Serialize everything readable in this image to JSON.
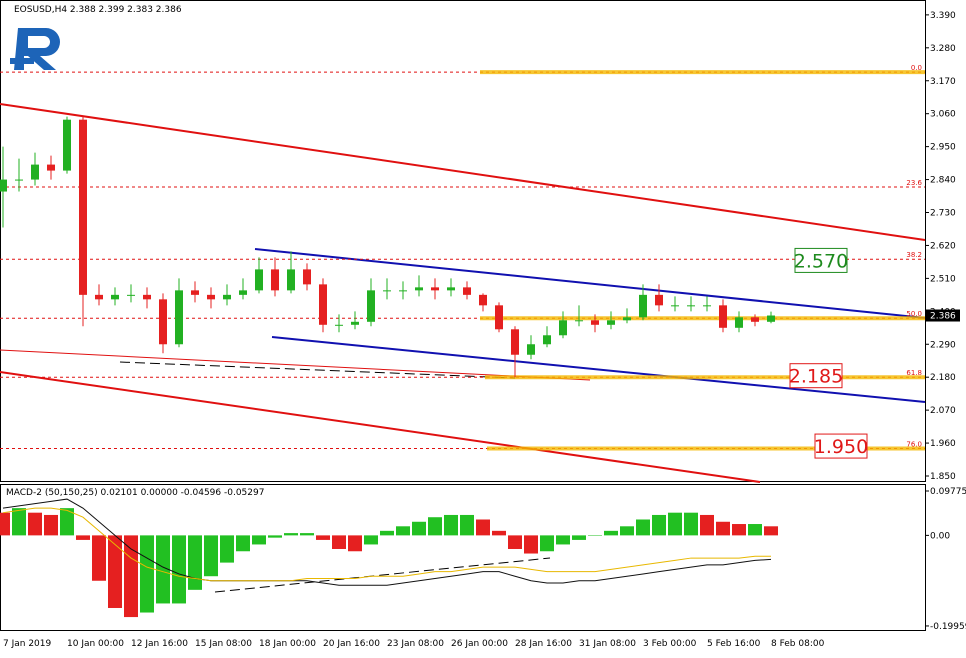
{
  "chart_data": [
    {
      "type": "candlestick",
      "title": "EOSUSD,H4  2.388 2.399 2.383 2.386",
      "categories": [
        "7 Jan 2019",
        null,
        null,
        null,
        "10 Jan 00:00",
        null,
        null,
        null,
        "12 Jan 16:00",
        null,
        null,
        null,
        "15 Jan 08:00",
        null,
        null,
        null,
        "18 Jan 00:00",
        null,
        null,
        null,
        "20 Jan 16:00",
        null,
        null,
        null,
        "23 Jan 08:00",
        null,
        null,
        null,
        "26 Jan 00:00",
        null,
        null,
        null,
        "28 Jan 16:00",
        null,
        null,
        null,
        "31 Jan 08:00",
        null,
        null,
        null,
        "3 Feb 00:00",
        null,
        null,
        null,
        "5 Feb 16:00",
        null,
        null,
        null,
        "8 Feb 08:00"
      ],
      "open": [
        2.8,
        2.84,
        2.84,
        2.89,
        2.87,
        3.04,
        2.455,
        2.44,
        2.455,
        2.455,
        2.44,
        2.29,
        2.47,
        2.455,
        2.44,
        2.455,
        2.47,
        2.54,
        2.47,
        2.54,
        2.49,
        2.355,
        2.355,
        2.365,
        2.47,
        2.47,
        2.47,
        2.48,
        2.47,
        2.48,
        2.455,
        2.42,
        2.34,
        2.255,
        2.29,
        2.32,
        2.37,
        2.37,
        2.355,
        2.37,
        2.38,
        2.455,
        2.42,
        2.42,
        2.42,
        2.42,
        2.345,
        2.38,
        2.365
      ],
      "high": [
        2.95,
        2.91,
        2.93,
        2.92,
        3.05,
        3.05,
        2.49,
        2.48,
        2.49,
        2.48,
        2.46,
        2.51,
        2.5,
        2.48,
        2.49,
        2.51,
        2.58,
        2.58,
        2.6,
        2.56,
        2.51,
        2.39,
        2.4,
        2.51,
        2.51,
        2.5,
        2.52,
        2.51,
        2.51,
        2.5,
        2.46,
        2.43,
        2.35,
        2.32,
        2.35,
        2.4,
        2.42,
        2.39,
        2.4,
        2.41,
        2.49,
        2.49,
        2.45,
        2.45,
        2.45,
        2.44,
        2.4,
        2.39,
        2.399
      ],
      "low": [
        2.68,
        2.8,
        2.82,
        2.84,
        2.86,
        2.35,
        2.42,
        2.42,
        2.43,
        2.41,
        2.26,
        2.28,
        2.43,
        2.41,
        2.42,
        2.44,
        2.46,
        2.45,
        2.46,
        2.47,
        2.33,
        2.33,
        2.34,
        2.35,
        2.44,
        2.44,
        2.45,
        2.44,
        2.45,
        2.44,
        2.4,
        2.33,
        2.18,
        2.24,
        2.28,
        2.31,
        2.35,
        2.33,
        2.34,
        2.36,
        2.37,
        2.4,
        2.4,
        2.4,
        2.4,
        2.33,
        2.33,
        2.35,
        2.36
      ],
      "close": [
        2.84,
        2.84,
        2.89,
        2.87,
        3.04,
        2.455,
        2.44,
        2.455,
        2.455,
        2.44,
        2.29,
        2.47,
        2.455,
        2.44,
        2.455,
        2.47,
        2.54,
        2.47,
        2.54,
        2.49,
        2.355,
        2.355,
        2.365,
        2.47,
        2.47,
        2.47,
        2.48,
        2.47,
        2.48,
        2.455,
        2.42,
        2.34,
        2.255,
        2.29,
        2.32,
        2.37,
        2.37,
        2.355,
        2.37,
        2.38,
        2.455,
        2.42,
        2.42,
        2.42,
        2.42,
        2.345,
        2.38,
        2.365,
        2.386
      ],
      "up_color": "#22b022",
      "down_color": "#e52020",
      "ylim": [
        1.83,
        3.433
      ],
      "yticks": [
        {
          "value": 3.39,
          "label": "3.390"
        },
        {
          "value": 3.28,
          "label": "3.280"
        },
        {
          "value": 3.17,
          "label": "3.170"
        },
        {
          "value": 3.06,
          "label": "3.060"
        },
        {
          "value": 2.95,
          "label": "2.950"
        },
        {
          "value": 2.84,
          "label": "2.840"
        },
        {
          "value": 2.73,
          "label": "2.730"
        },
        {
          "value": 2.62,
          "label": "2.620"
        },
        {
          "value": 2.51,
          "label": "2.510"
        },
        {
          "value": 2.4,
          "label": "2.400"
        },
        {
          "value": 2.29,
          "label": "2.290"
        },
        {
          "value": 2.18,
          "label": "2.180"
        },
        {
          "value": 2.07,
          "label": "2.070"
        },
        {
          "value": 1.96,
          "label": "1.960"
        },
        {
          "value": 1.85,
          "label": "1.850"
        }
      ],
      "fib_levels": [
        {
          "value": 3.199,
          "label": "0.0"
        },
        {
          "value": 2.815,
          "label": "23.6"
        },
        {
          "value": 2.574,
          "label": "38.2"
        },
        {
          "value": 2.377,
          "label": "50.0"
        },
        {
          "value": 2.18,
          "label": "61.8"
        },
        {
          "value": 1.942,
          "label": "76.0"
        }
      ],
      "targets": [
        {
          "value": 2.57,
          "label": "2.570",
          "color": "#1e8a1e"
        },
        {
          "value": 2.185,
          "label": "2.185",
          "color": "#e01818"
        },
        {
          "value": 1.95,
          "label": "1.950",
          "color": "#e01818"
        }
      ],
      "last_price": {
        "value": 2.386,
        "label": "2.386"
      }
    },
    {
      "type": "macd",
      "title": "MACD-2 (50,150,25) 0.02101 0.00000 -0.04596 -0.05297",
      "histogram": [
        0.05,
        0.06,
        0.05,
        0.045,
        0.06,
        -0.01,
        -0.1,
        -0.16,
        -0.18,
        -0.17,
        -0.15,
        -0.15,
        -0.12,
        -0.09,
        -0.06,
        -0.035,
        -0.02,
        -0.005,
        0.005,
        0.005,
        -0.01,
        -0.03,
        -0.035,
        -0.02,
        0.01,
        0.02,
        0.03,
        0.04,
        0.045,
        0.045,
        0.035,
        0.01,
        -0.03,
        -0.04,
        -0.035,
        -0.02,
        -0.01,
        0,
        0.01,
        0.02,
        0.035,
        0.045,
        0.05,
        0.05,
        0.045,
        0.03,
        0.025,
        0.025,
        0.02
      ],
      "series": [
        {
          "color": "#111111",
          "values": [
            0.06,
            0.065,
            0.07,
            0.075,
            0.08,
            0.06,
            0.03,
            0,
            -0.03,
            -0.05,
            -0.07,
            -0.085,
            -0.095,
            -0.1,
            -0.1,
            -0.1,
            -0.1,
            -0.1,
            -0.1,
            -0.1,
            -0.105,
            -0.11,
            -0.11,
            -0.11,
            -0.11,
            -0.105,
            -0.1,
            -0.095,
            -0.09,
            -0.085,
            -0.08,
            -0.08,
            -0.09,
            -0.1,
            -0.105,
            -0.105,
            -0.1,
            -0.1,
            -0.095,
            -0.09,
            -0.085,
            -0.08,
            -0.075,
            -0.07,
            -0.065,
            -0.065,
            -0.06,
            -0.055,
            -0.053
          ]
        },
        {
          "color": "#e8b800",
          "values": [
            0.05,
            0.055,
            0.06,
            0.06,
            0.055,
            0.04,
            0.01,
            -0.02,
            -0.05,
            -0.07,
            -0.08,
            -0.09,
            -0.095,
            -0.1,
            -0.1,
            -0.1,
            -0.1,
            -0.1,
            -0.1,
            -0.095,
            -0.095,
            -0.095,
            -0.095,
            -0.09,
            -0.09,
            -0.09,
            -0.085,
            -0.08,
            -0.08,
            -0.075,
            -0.07,
            -0.07,
            -0.07,
            -0.075,
            -0.08,
            -0.08,
            -0.08,
            -0.08,
            -0.075,
            -0.07,
            -0.065,
            -0.06,
            -0.055,
            -0.05,
            -0.05,
            -0.05,
            -0.05,
            -0.046,
            -0.04596
          ]
        }
      ],
      "up_color": "#22c022",
      "down_color": "#e52020",
      "ylim": [
        -0.2085,
        0.111
      ],
      "yticks": [
        0.09775,
        {
          "value": 0,
          "label": "0.00"
        },
        -0.19959
      ]
    }
  ]
}
